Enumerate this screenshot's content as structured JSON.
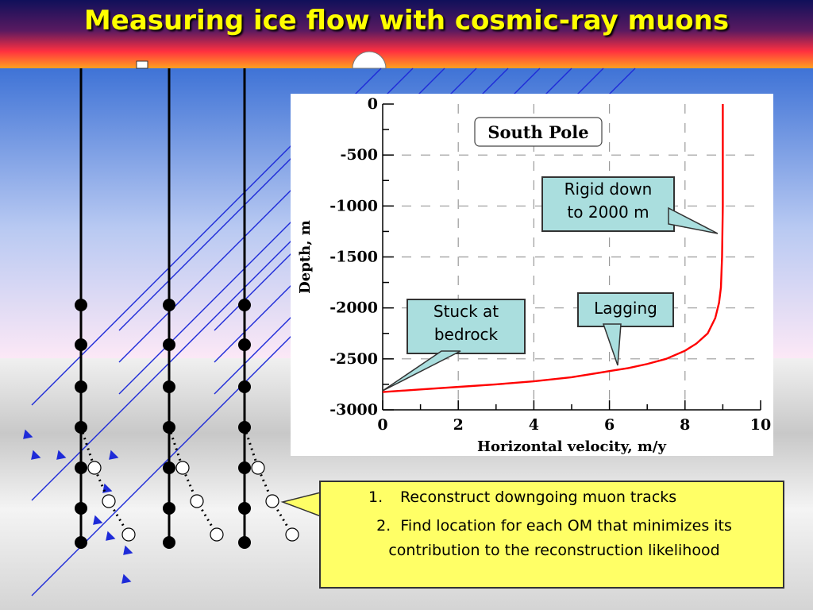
{
  "title": "Measuring ice flow with cosmic-ray muons",
  "colors": {
    "title": "#ffff00",
    "curve": "#ff0000",
    "callout_fill": "#aadede",
    "notes_fill": "#ffff66",
    "muon_tracks": "#1e2bd8"
  },
  "chart_data": {
    "type": "line",
    "title": "South Pole",
    "xlabel": "Horizontal velocity, m/y",
    "ylabel": "Depth, m",
    "xlim": [
      0,
      10
    ],
    "ylim": [
      -3000,
      0
    ],
    "x_ticks": [
      "0",
      "2",
      "4",
      "6",
      "8",
      "10"
    ],
    "y_ticks": [
      "0",
      "-500",
      "-1000",
      "-1500",
      "-2000",
      "-2500",
      "-3000"
    ],
    "grid": true,
    "series": [
      {
        "color": "#ff0000",
        "x": [
          9.0,
          9.0,
          9.0,
          8.98,
          8.95,
          8.9,
          8.8,
          8.6,
          8.3,
          8.0,
          7.5,
          7.0,
          6.5,
          6.0,
          5.0,
          4.0,
          3.0,
          2.0,
          1.0,
          0.0
        ],
        "y": [
          0,
          -500,
          -1000,
          -1500,
          -1800,
          -1950,
          -2100,
          -2250,
          -2350,
          -2420,
          -2500,
          -2550,
          -2590,
          -2620,
          -2680,
          -2720,
          -2750,
          -2775,
          -2800,
          -2825
        ]
      }
    ],
    "annotations": [
      {
        "text": "Rigid down to 2000 m",
        "lines": [
          "Rigid down",
          "to 2000 m"
        ],
        "target": {
          "x": 9.0,
          "y": -1250
        }
      },
      {
        "text": "Lagging",
        "lines": [
          "Lagging"
        ],
        "target": {
          "x": 6.1,
          "y": -2590
        }
      },
      {
        "text": "Stuck at bedrock",
        "lines": [
          "Stuck at",
          "bedrock"
        ],
        "target": {
          "x": 0.0,
          "y": -2820
        }
      }
    ]
  },
  "notes": [
    {
      "number": "1.",
      "text": "Reconstruct downgoing muon tracks"
    },
    {
      "number": "2.",
      "text": "Find location for each OM that minimizes its contribution to the reconstruction likelihood"
    }
  ]
}
